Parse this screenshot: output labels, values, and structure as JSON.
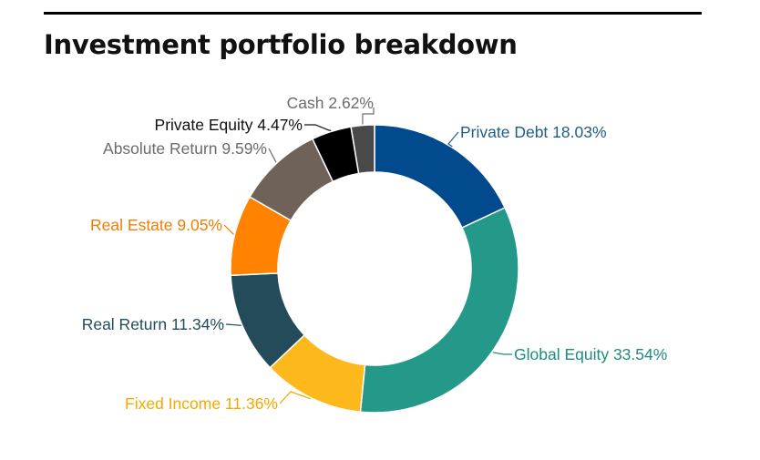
{
  "title": "Investment portfolio breakdown",
  "chart_data": {
    "type": "pie",
    "subtype": "donut",
    "title": "Investment portfolio breakdown",
    "slices": [
      {
        "label": "Private Debt",
        "value": 18.03,
        "value_label": "18.03%",
        "color": "#004a8d"
      },
      {
        "label": "Global Equity",
        "value": 33.54,
        "value_label": "33.54%",
        "color": "#24998a"
      },
      {
        "label": "Fixed Income",
        "value": 11.36,
        "value_label": "11.36%",
        "color": "#fdb81c"
      },
      {
        "label": "Real Return",
        "value": 11.34,
        "value_label": "11.34%",
        "color": "#244b5a"
      },
      {
        "label": "Real Estate",
        "value": 9.05,
        "value_label": "9.05%",
        "color": "#ff8200"
      },
      {
        "label": "Absolute Return",
        "value": 9.59,
        "value_label": "9.59%",
        "color": "#6e6259"
      },
      {
        "label": "Private Equity",
        "value": 4.47,
        "value_label": "4.47%",
        "color": "#000000"
      },
      {
        "label": "Cash",
        "value": 2.62,
        "value_label": "2.62%",
        "color": "#4a4a4a"
      }
    ]
  }
}
